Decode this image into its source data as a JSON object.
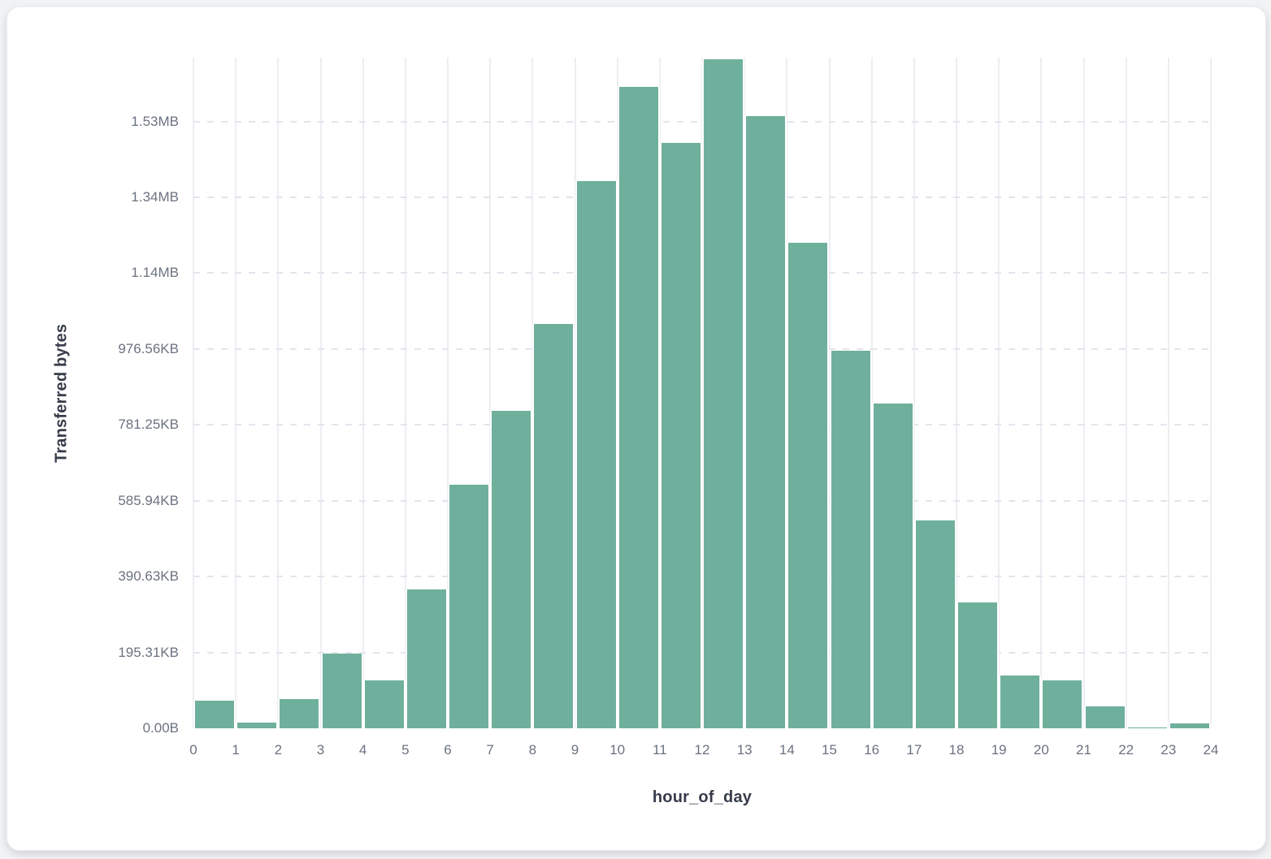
{
  "page": {
    "background": "#f2f3f5"
  },
  "card": {
    "background": "#ffffff",
    "border_color": "#ebedf0"
  },
  "chart_data": {
    "type": "bar",
    "title": "",
    "xlabel": "hour_of_day",
    "ylabel": "Transferred bytes",
    "bar_color": "#6fb09c",
    "grid_vertical_color": "#edeef3",
    "grid_horizontal_color": "#e3e5ec",
    "tick_label_color": "#6b7280",
    "axis_title_color": "#363c4a",
    "grid": true,
    "legend_position": "none",
    "x_range_hours": [
      0,
      24
    ],
    "y_range_bytes": [
      0,
      1768000
    ],
    "x_tick_labels": [
      "0",
      "1",
      "2",
      "3",
      "4",
      "5",
      "6",
      "7",
      "8",
      "9",
      "10",
      "11",
      "12",
      "13",
      "14",
      "15",
      "16",
      "17",
      "18",
      "19",
      "20",
      "21",
      "22",
      "23",
      "24"
    ],
    "y_ticks": [
      {
        "label": "0.00B",
        "value": 0
      },
      {
        "label": "195.31KB",
        "value": 200000
      },
      {
        "label": "390.63KB",
        "value": 400000
      },
      {
        "label": "585.94KB",
        "value": 600000
      },
      {
        "label": "781.25KB",
        "value": 800000
      },
      {
        "label": "976.56KB",
        "value": 1000000
      },
      {
        "label": "1.14MB",
        "value": 1200000
      },
      {
        "label": "1.34MB",
        "value": 1400000
      },
      {
        "label": "1.53MB",
        "value": 1600000
      }
    ],
    "categories": [
      0,
      1,
      2,
      3,
      4,
      5,
      6,
      7,
      8,
      9,
      10,
      11,
      12,
      13,
      14,
      15,
      16,
      17,
      18,
      19,
      20,
      21,
      22,
      23
    ],
    "values": [
      72000,
      14000,
      77000,
      196000,
      126000,
      367000,
      643000,
      838000,
      1065000,
      1443000,
      1690000,
      1544000,
      1763000,
      1613000,
      1280000,
      995000,
      857000,
      547000,
      331000,
      139000,
      126000,
      57000,
      3000,
      12000
    ]
  }
}
